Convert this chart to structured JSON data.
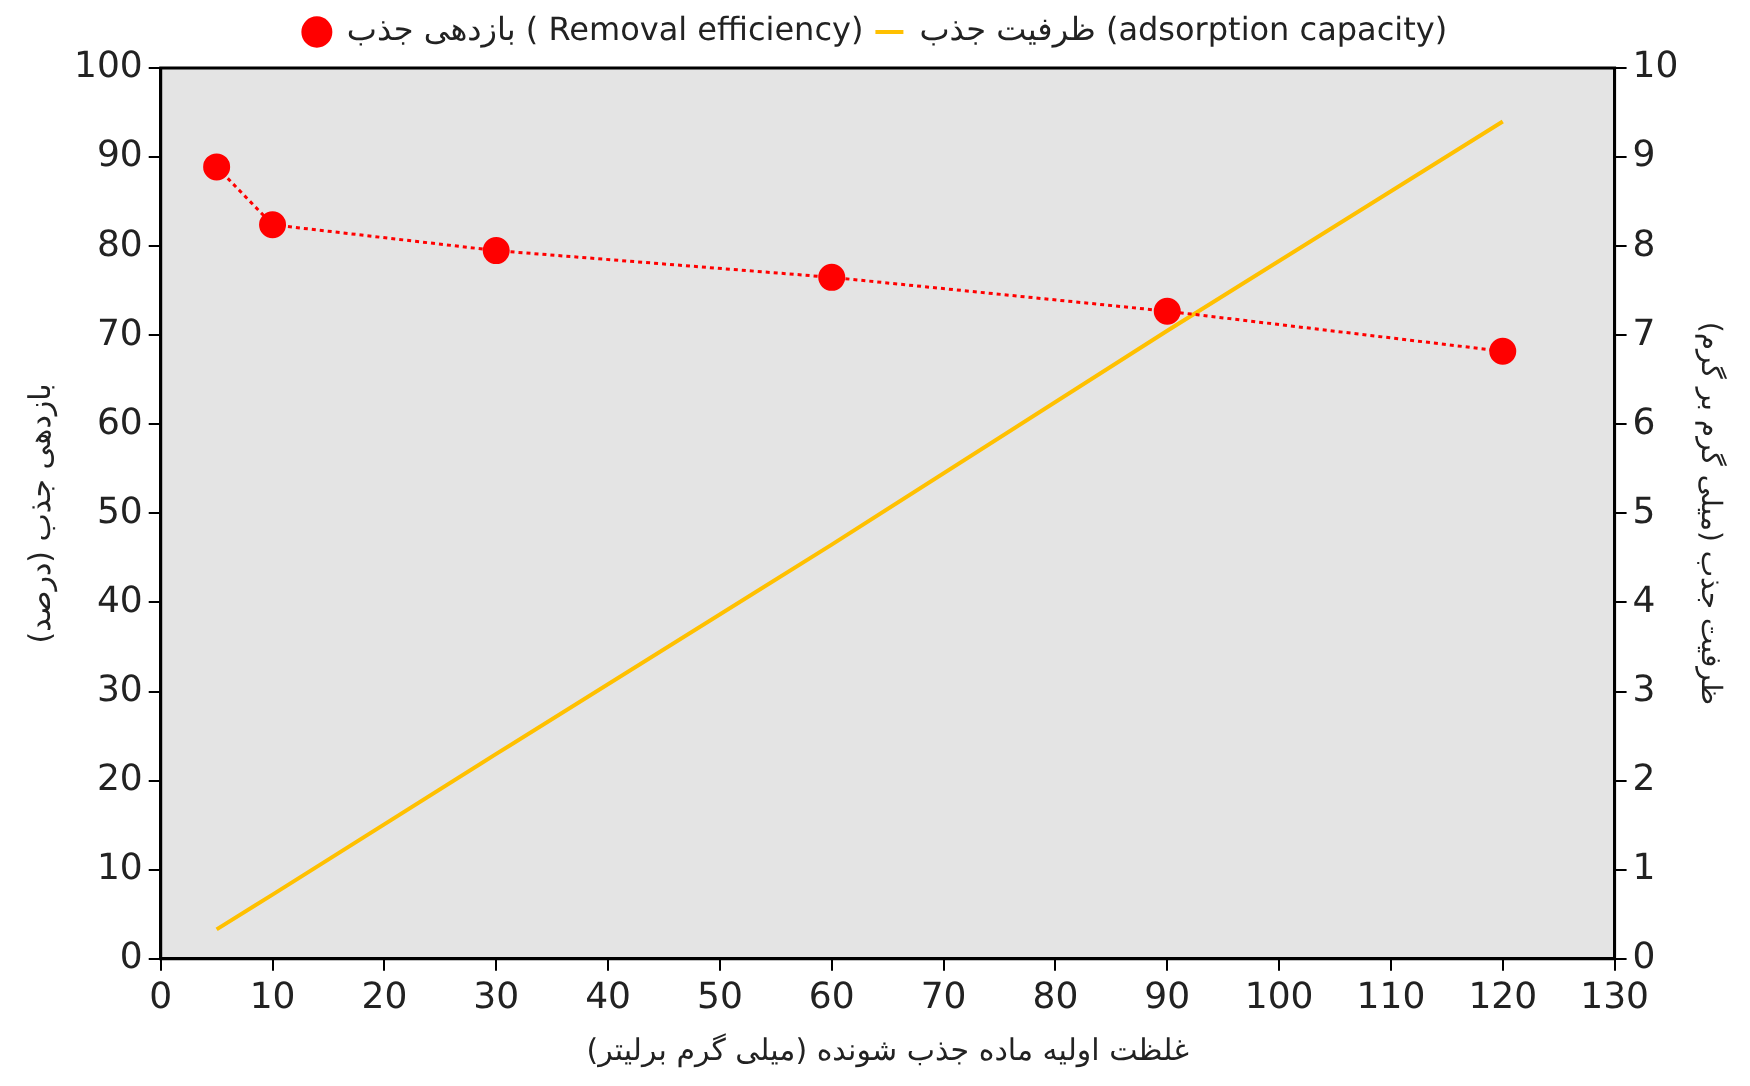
{
  "chart_data": {
    "type": "line",
    "xlabel": "غلظت اولیه ماده جذب شونده (میلی گرم برلیتر)",
    "ylabel": "بازدهی جذب (درصد)",
    "y2label": "ظرفیت جذب (میلی گرم بر گرم)",
    "x": [
      5,
      10,
      30,
      60,
      90,
      120
    ],
    "series": [
      {
        "name": "بازدهی جذب ( Removal efficiency)",
        "color": "#ff0000",
        "values": [
          88.9,
          82.4,
          79.5,
          76.5,
          72.7,
          68.2
        ],
        "marker": "circle",
        "line_style": "dotted"
      },
      {
        "name": "ظرفیت جذب (adsorption capacity)",
        "color": "#ffc000",
        "values": [
          0.33,
          0.72,
          2.3,
          4.65,
          7.05,
          9.4
        ],
        "axis": "y2",
        "marker": "none",
        "line_style": "solid"
      }
    ],
    "xlim": [
      0,
      130
    ],
    "xticks": [
      0,
      10,
      20,
      30,
      40,
      50,
      60,
      70,
      80,
      90,
      100,
      110,
      120,
      130
    ],
    "ylim": [
      0,
      100
    ],
    "yticks": [
      0,
      10,
      20,
      30,
      40,
      50,
      60,
      70,
      80,
      90,
      100
    ],
    "y2lim": [
      0,
      10
    ],
    "y2ticks": [
      0,
      1,
      2,
      3,
      4,
      5,
      6,
      7,
      8,
      9,
      10
    ],
    "grid": false,
    "legend": "top"
  }
}
